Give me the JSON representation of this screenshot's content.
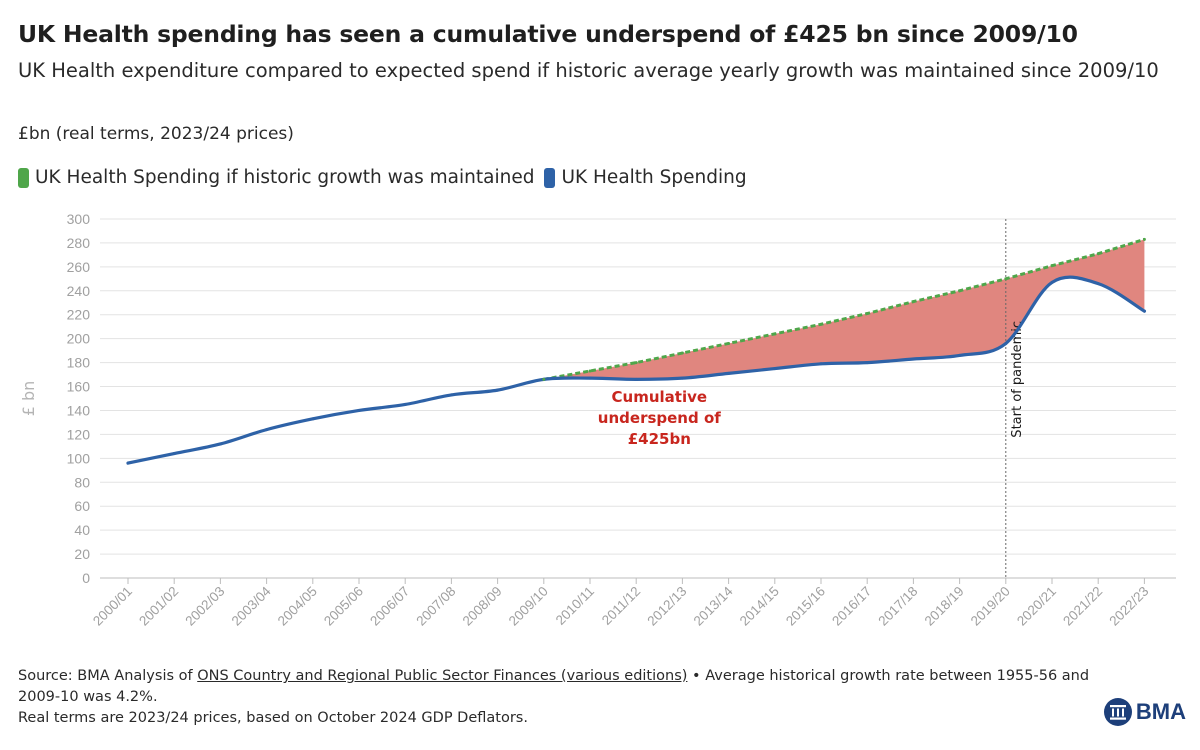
{
  "title": "UK Health spending has seen a cumulative underspend of £425 bn since 2009/10",
  "subtitle": "UK Health expenditure compared to expected spend if historic average yearly growth was maintained since 2009/10",
  "units": "£bn (real terms, 2023/24 prices)",
  "legend": {
    "historic": "UK Health Spending if historic growth was maintained",
    "actual": "UK Health Spending"
  },
  "colors": {
    "historic": "#4fa64a",
    "actual": "#2e62a7",
    "fill": "#e0867f",
    "annotation": "#c8261e",
    "brand": "#1d3f7a"
  },
  "chart_data": {
    "type": "line",
    "title": "UK Health spending has seen a cumulative underspend of £425 bn since 2009/10",
    "xlabel": "",
    "ylabel": "£ bn",
    "ylim": [
      0,
      300
    ],
    "yticks": [
      0,
      20,
      40,
      60,
      80,
      100,
      120,
      140,
      160,
      180,
      200,
      220,
      240,
      260,
      280,
      300
    ],
    "categories": [
      "2000/01",
      "2001/02",
      "2002/03",
      "2003/04",
      "2004/05",
      "2005/06",
      "2006/07",
      "2007/08",
      "2008/09",
      "2009/10",
      "2010/11",
      "2011/12",
      "2012/13",
      "2013/14",
      "2014/15",
      "2015/16",
      "2016/17",
      "2017/18",
      "2018/19",
      "2019/20",
      "2020/21",
      "2021/22",
      "2022/23"
    ],
    "series": [
      {
        "name": "UK Health Spending",
        "values": [
          96,
          104,
          112,
          124,
          133,
          140,
          145,
          153,
          157,
          166,
          167,
          166,
          167,
          171,
          175,
          179,
          180,
          183,
          186,
          196,
          247,
          246,
          223
        ]
      },
      {
        "name": "UK Health Spending if historic growth was maintained",
        "values": [
          null,
          null,
          null,
          null,
          null,
          null,
          null,
          null,
          null,
          166,
          173,
          180,
          188,
          196,
          204,
          212,
          221,
          231,
          240,
          250,
          261,
          271,
          283
        ]
      }
    ],
    "annotations": {
      "underspend": [
        "Cumulative",
        "underspend of",
        "£425bn"
      ],
      "pandemic": "Start of pandemic",
      "pandemic_category": "2019/20"
    }
  },
  "footer": {
    "source_prefix": "Source: BMA Analysis of ",
    "source_link": "ONS Country and Regional Public Sector Finances (various editions)",
    "source_suffix": " • Average historical growth rate between 1955-56 and 2009-10 was 4.2%.",
    "note": "Real terms are 2023/24 prices, based on October 2024 GDP Deflators."
  },
  "logo": {
    "text": "BMA"
  }
}
